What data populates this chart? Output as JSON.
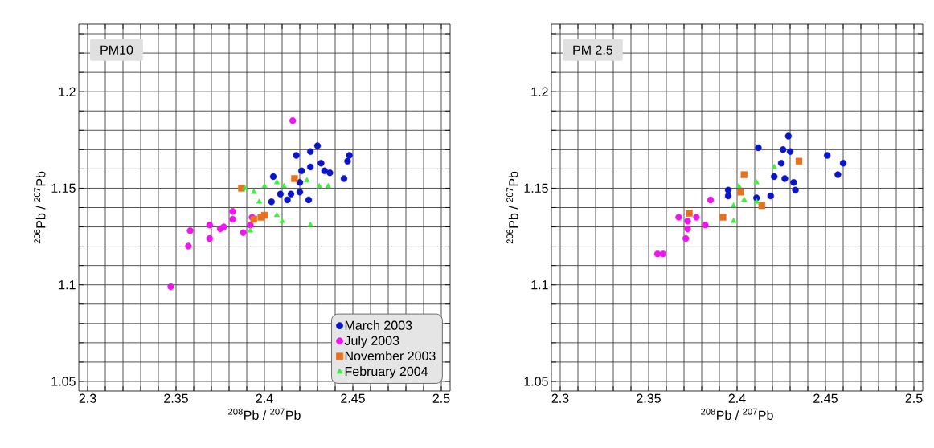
{
  "chart_data": [
    {
      "type": "scatter",
      "title": "PM10",
      "xlabel": "$^{208}$Pb / $^{207}$Pb",
      "ylabel": "$^{206}$Pb / $^{207}$Pb",
      "xlim": [
        2.295,
        2.505
      ],
      "ylim": [
        1.045,
        1.235
      ],
      "grid": true,
      "legend": "bottom right",
      "xticks": [
        2.3,
        {
          "value": 2.31,
          "label": null
        },
        {
          "value": 2.32,
          "label": null
        },
        {
          "value": 2.33,
          "label": null
        },
        {
          "value": 2.34,
          "label": null
        },
        2.35,
        {
          "value": 2.36,
          "label": null
        },
        {
          "value": 2.37,
          "label": null
        },
        {
          "value": 2.38,
          "label": null
        },
        {
          "value": 2.39,
          "label": null
        },
        2.4,
        {
          "value": 2.41,
          "label": null
        },
        {
          "value": 2.42,
          "label": null
        },
        {
          "value": 2.43,
          "label": null
        },
        {
          "value": 2.44,
          "label": null
        },
        2.45,
        {
          "value": 2.46,
          "label": null
        },
        {
          "value": 2.47,
          "label": null
        },
        {
          "value": 2.48,
          "label": null
        },
        {
          "value": 2.49,
          "label": null
        },
        2.5
      ],
      "yticks": [
        1.05,
        {
          "value": 1.06,
          "label": null
        },
        {
          "value": 1.07,
          "label": null
        },
        {
          "value": 1.08,
          "label": null
        },
        {
          "value": 1.09,
          "label": null
        },
        1.1,
        {
          "value": 1.11,
          "label": null
        },
        {
          "value": 1.12,
          "label": null
        },
        {
          "value": 1.13,
          "label": null
        },
        {
          "value": 1.14,
          "label": null
        },
        1.15,
        {
          "value": 1.16,
          "label": null
        },
        {
          "value": 1.17,
          "label": null
        },
        {
          "value": 1.18,
          "label": null
        },
        {
          "value": 1.19,
          "label": null
        },
        1.2,
        {
          "value": 1.21,
          "label": null
        },
        {
          "value": 1.22,
          "label": null
        },
        {
          "value": 1.23,
          "label": null
        }
      ],
      "series": [
        {
          "name": "March 2003",
          "color": "#0a14c8",
          "marker": "circle",
          "x": [
            2.43,
            2.426,
            2.418,
            2.448,
            2.447,
            2.432,
            2.421,
            2.426,
            2.434,
            2.437,
            2.445,
            2.405,
            2.42,
            2.409,
            2.415,
            2.42,
            2.413,
            2.425,
            2.404
          ],
          "values": [
            1.172,
            1.169,
            1.167,
            1.167,
            1.164,
            1.163,
            1.159,
            1.161,
            1.159,
            1.158,
            1.155,
            1.156,
            1.153,
            1.147,
            1.147,
            1.148,
            1.144,
            1.144,
            1.143
          ]
        },
        {
          "name": "July 2003",
          "color": "#f014f0",
          "marker": "circle",
          "x": [
            2.416,
            2.347,
            2.357,
            2.358,
            2.369,
            2.369,
            2.375,
            2.377,
            2.382,
            2.382,
            2.388,
            2.392,
            2.393
          ],
          "values": [
            1.185,
            1.099,
            1.12,
            1.128,
            1.124,
            1.131,
            1.129,
            1.13,
            1.138,
            1.134,
            1.127,
            1.131,
            1.135
          ]
        },
        {
          "name": "November 2003",
          "color": "#e8701e",
          "marker": "square",
          "x": [
            2.417,
            2.387,
            2.4,
            2.398,
            2.394
          ],
          "values": [
            1.155,
            1.15,
            1.136,
            1.135,
            1.134
          ]
        },
        {
          "name": "February 2004",
          "color": "#3cf03c",
          "marker": "triangle",
          "x": [
            2.389,
            2.394,
            2.4,
            2.407,
            2.411,
            2.397,
            2.407,
            2.41,
            2.426,
            2.431,
            2.436,
            2.424,
            2.392
          ],
          "values": [
            1.15,
            1.148,
            1.151,
            1.153,
            1.151,
            1.143,
            1.136,
            1.133,
            1.131,
            1.151,
            1.151,
            1.154,
            1.128
          ]
        }
      ]
    },
    {
      "type": "scatter",
      "title": "PM 2.5",
      "xlabel": "$^{208}$Pb / $^{207}$Pb",
      "ylabel": "$^{206}$Pb / $^{207}$Pb",
      "xlim": [
        2.295,
        2.505
      ],
      "ylim": [
        1.045,
        1.235
      ],
      "grid": true,
      "xticks": [
        2.3,
        {
          "value": 2.31,
          "label": null
        },
        {
          "value": 2.32,
          "label": null
        },
        {
          "value": 2.33,
          "label": null
        },
        {
          "value": 2.34,
          "label": null
        },
        2.35,
        {
          "value": 2.36,
          "label": null
        },
        {
          "value": 2.37,
          "label": null
        },
        {
          "value": 2.38,
          "label": null
        },
        {
          "value": 2.39,
          "label": null
        },
        2.4,
        {
          "value": 2.41,
          "label": null
        },
        {
          "value": 2.42,
          "label": null
        },
        {
          "value": 2.43,
          "label": null
        },
        {
          "value": 2.44,
          "label": null
        },
        2.45,
        {
          "value": 2.46,
          "label": null
        },
        {
          "value": 2.47,
          "label": null
        },
        {
          "value": 2.48,
          "label": null
        },
        {
          "value": 2.49,
          "label": null
        },
        2.5
      ],
      "yticks": [
        1.05,
        {
          "value": 1.06,
          "label": null
        },
        {
          "value": 1.07,
          "label": null
        },
        {
          "value": 1.08,
          "label": null
        },
        {
          "value": 1.09,
          "label": null
        },
        1.1,
        {
          "value": 1.11,
          "label": null
        },
        {
          "value": 1.12,
          "label": null
        },
        {
          "value": 1.13,
          "label": null
        },
        {
          "value": 1.14,
          "label": null
        },
        1.15,
        {
          "value": 1.16,
          "label": null
        },
        {
          "value": 1.17,
          "label": null
        },
        {
          "value": 1.18,
          "label": null
        },
        {
          "value": 1.19,
          "label": null
        },
        1.2,
        {
          "value": 1.21,
          "label": null
        },
        {
          "value": 1.22,
          "label": null
        },
        {
          "value": 1.23,
          "label": null
        }
      ],
      "series": [
        {
          "color": "#0a14c8",
          "marker": "circle",
          "x": [
            2.429,
            2.412,
            2.426,
            2.43,
            2.451,
            2.46,
            2.457,
            2.425,
            2.421,
            2.427,
            2.432,
            2.433,
            2.395,
            2.395,
            2.411,
            2.419
          ],
          "values": [
            1.177,
            1.171,
            1.17,
            1.169,
            1.167,
            1.163,
            1.157,
            1.163,
            1.156,
            1.155,
            1.153,
            1.149,
            1.149,
            1.146,
            1.145,
            1.146
          ]
        },
        {
          "color": "#f014f0",
          "marker": "circle",
          "x": [
            2.355,
            2.358,
            2.385,
            2.367,
            2.372,
            2.377,
            2.371,
            2.372,
            2.382
          ],
          "values": [
            1.116,
            1.116,
            1.144,
            1.135,
            1.133,
            1.135,
            1.124,
            1.129,
            1.131
          ]
        },
        {
          "color": "#e8701e",
          "marker": "square",
          "x": [
            2.404,
            2.435,
            2.392,
            2.373,
            2.414,
            2.402
          ],
          "values": [
            1.157,
            1.164,
            1.135,
            1.137,
            1.141,
            1.148
          ]
        },
        {
          "color": "#3cf03c",
          "marker": "triangle",
          "x": [
            2.401,
            2.411,
            2.404,
            2.398,
            2.398,
            2.421,
            2.411
          ],
          "values": [
            1.151,
            1.153,
            1.144,
            1.141,
            1.133,
            1.161,
            1.143
          ]
        }
      ]
    }
  ]
}
